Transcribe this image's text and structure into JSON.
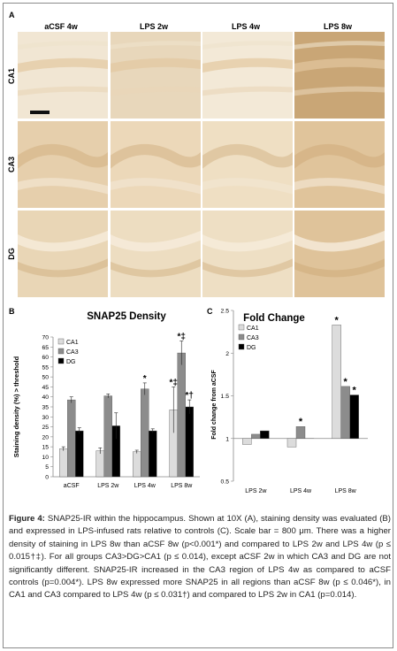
{
  "panel_a": {
    "letter": "A",
    "columns": [
      "aCSF 4w",
      "LPS 2w",
      "LPS 4w",
      "LPS 8w"
    ],
    "rows": [
      "CA1",
      "CA3",
      "DG"
    ]
  },
  "chart_data": [
    {
      "type": "bar",
      "panel": "B",
      "title": "SNAP25 Density",
      "ylabel": "Staining density (%) > threshold",
      "xlabel": "",
      "categories": [
        "aCSF",
        "LPS 2w",
        "LPS 4w",
        "LPS 8w"
      ],
      "ylim": [
        0,
        70
      ],
      "yticks": [
        0,
        5,
        10,
        15,
        20,
        25,
        30,
        35,
        40,
        45,
        50,
        55,
        60,
        65,
        70
      ],
      "legend": "top-left",
      "series": [
        {
          "name": "CA1",
          "color": "#dcdcdc",
          "values": [
            14,
            13,
            12.5,
            33.5
          ],
          "errors": [
            1,
            1.5,
            0.8,
            11.5
          ]
        },
        {
          "name": "CA3",
          "color": "#8c8c8c",
          "values": [
            38.5,
            40.5,
            44,
            62
          ],
          "errors": [
            1.5,
            1,
            3,
            6
          ]
        },
        {
          "name": "DG",
          "color": "#000000",
          "values": [
            23,
            25.5,
            23,
            35
          ],
          "errors": [
            1.5,
            6.5,
            1,
            3.5
          ]
        }
      ],
      "annotations": [
        {
          "category": "LPS 4w",
          "series": "CA3",
          "text": "*"
        },
        {
          "category": "LPS 8w",
          "series": "CA1",
          "text": "*‡"
        },
        {
          "category": "LPS 8w",
          "series": "CA3",
          "text": "*‡"
        },
        {
          "category": "LPS 8w",
          "series": "DG",
          "text": "*†"
        }
      ]
    },
    {
      "type": "bar",
      "panel": "C",
      "title": "Fold Change",
      "ylabel": "Fold change from aCSF",
      "xlabel": "",
      "categories": [
        "LPS 2w",
        "LPS 4w",
        "LPS 8w"
      ],
      "ylim": [
        0.5,
        2.5
      ],
      "yticks": [
        0.5,
        1,
        1.5,
        2,
        2.5
      ],
      "baseline": 1,
      "legend": "top-left",
      "series": [
        {
          "name": "CA1",
          "color": "#dcdcdc",
          "values": [
            0.93,
            0.9,
            2.33
          ]
        },
        {
          "name": "CA3",
          "color": "#8c8c8c",
          "values": [
            1.05,
            1.14,
            1.61
          ]
        },
        {
          "name": "DG",
          "color": "#000000",
          "values": [
            1.09,
            1.0,
            1.51
          ]
        }
      ],
      "annotations": [
        {
          "category": "LPS 4w",
          "series": "CA3",
          "text": "*"
        },
        {
          "category": "LPS 8w",
          "series": "CA1",
          "text": "*"
        },
        {
          "category": "LPS 8w",
          "series": "CA3",
          "text": "*"
        },
        {
          "category": "LPS 8w",
          "series": "DG",
          "text": "*"
        }
      ]
    }
  ],
  "caption": {
    "label": "Figure 4:",
    "text": "SNAP25-IR within the hippocampus. Shown at 10X (A), staining density was evaluated (B) and expressed in LPS-infused rats relative to controls (C). Scale bar = 800 μm. There was a higher density of staining in LPS 8w than aCSF 8w (p<0.001*) and compared to LPS 2w and LPS 4w (p ≤ 0.015†‡). For all groups CA3>DG>CA1 (p ≤ 0.014), except aCSF 2w in which CA3 and DG are not significantly different. SNAP25-IR increased in the CA3 region of LPS 4w as compared to aCSF controls (p=0.004*). LPS 8w expressed more SNAP25 in all regions than aCSF 8w (p ≤ 0.046*), in CA1 and CA3 compared to LPS 4w (p ≤ 0.031†) and compared to LPS 2w in CA1 (p=0.014)."
  }
}
